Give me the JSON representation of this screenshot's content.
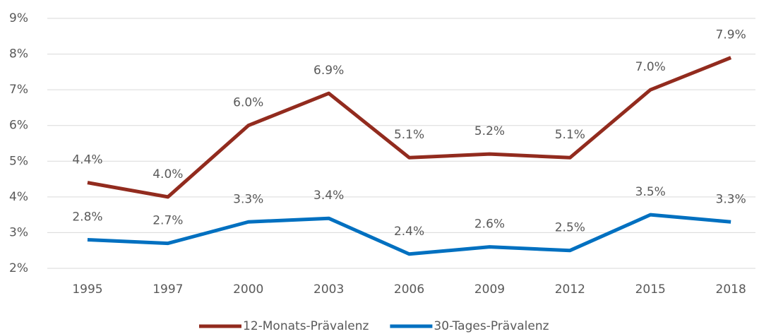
{
  "chart_data": {
    "type": "line",
    "categories": [
      "1995",
      "1997",
      "2000",
      "2003",
      "2006",
      "2009",
      "2012",
      "2015",
      "2018"
    ],
    "series": [
      {
        "name": "12-Monats-Prävalenz",
        "color": "#922b1e",
        "values": [
          4.4,
          4.0,
          6.0,
          6.9,
          5.1,
          5.2,
          5.1,
          7.0,
          7.9
        ],
        "value_labels": [
          "4.4%",
          "4.0%",
          "6.0%",
          "6.9%",
          "5.1%",
          "5.2%",
          "5.1%",
          "7.0%",
          "7.9%"
        ]
      },
      {
        "name": "30-Tages-Prävalenz",
        "color": "#0070c0",
        "values": [
          2.8,
          2.7,
          3.3,
          3.4,
          2.4,
          2.6,
          2.5,
          3.5,
          3.3
        ],
        "value_labels": [
          "2.8%",
          "2.7%",
          "3.3%",
          "3.4%",
          "2.4%",
          "2.6%",
          "2.5%",
          "3.5%",
          "3.3%"
        ]
      }
    ],
    "ylim": [
      2,
      9
    ],
    "yticks": [
      {
        "value": 2,
        "label": "2%"
      },
      {
        "value": 3,
        "label": "3%"
      },
      {
        "value": 4,
        "label": "4%"
      },
      {
        "value": 5,
        "label": "5%"
      },
      {
        "value": 6,
        "label": "6%"
      },
      {
        "value": 7,
        "label": "7%"
      },
      {
        "value": 8,
        "label": "8%"
      },
      {
        "value": 9,
        "label": "9%"
      }
    ],
    "grid": true,
    "legend": "bottom"
  }
}
